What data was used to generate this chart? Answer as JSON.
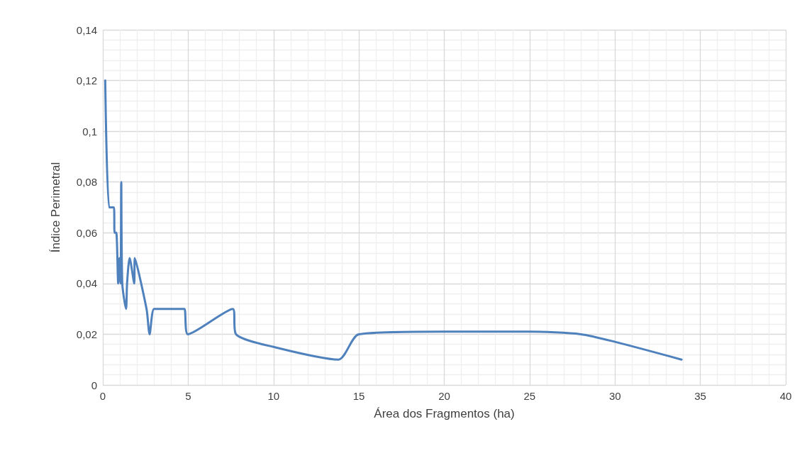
{
  "chart_data": {
    "type": "line",
    "xlabel": "Área dos Fragmentos (ha)",
    "ylabel": "Índice Perimetral",
    "x": [
      0.14,
      0.37,
      0.65,
      0.69,
      0.79,
      0.9,
      0.97,
      1.04,
      1.08,
      1.14,
      1.36,
      1.42,
      1.57,
      1.84,
      1.87,
      2.56,
      2.74,
      3.0,
      3.5,
      4.5,
      4.78,
      4.98,
      7.61,
      7.8,
      10,
      13.8,
      15,
      20,
      25,
      28,
      30,
      33.9
    ],
    "series": [
      {
        "color": "#4f81bd",
        "values": [
          0.12,
          0.07,
          0.07,
          0.06,
          0.06,
          0.04,
          0.05,
          0.04,
          0.08,
          0.04,
          0.03,
          0.04,
          0.05,
          0.04,
          0.05,
          0.03,
          0.02,
          0.03,
          0.03,
          0.03,
          0.03,
          0.02,
          0.03,
          0.02,
          0.015,
          0.01,
          0.02,
          0.021,
          0.021,
          0.02,
          0.017,
          0.01
        ]
      }
    ],
    "xlim": [
      0,
      40
    ],
    "xticks": [
      0,
      5,
      10,
      15,
      20,
      25,
      30,
      35,
      40
    ],
    "ylim": [
      0,
      0.14
    ],
    "yticks": [
      {
        "value": 0,
        "label": "0"
      },
      {
        "value": 0.02,
        "label": "0,02"
      },
      {
        "value": 0.04,
        "label": "0,04"
      },
      {
        "value": 0.06,
        "label": "0,06"
      },
      {
        "value": 0.08,
        "label": "0,08"
      },
      {
        "value": 0.1,
        "label": "0,1"
      },
      {
        "value": 0.12,
        "label": "0,12"
      },
      {
        "value": 0.14,
        "label": "0,14"
      }
    ],
    "grid": true,
    "marker": "none",
    "line_style": "solid"
  }
}
